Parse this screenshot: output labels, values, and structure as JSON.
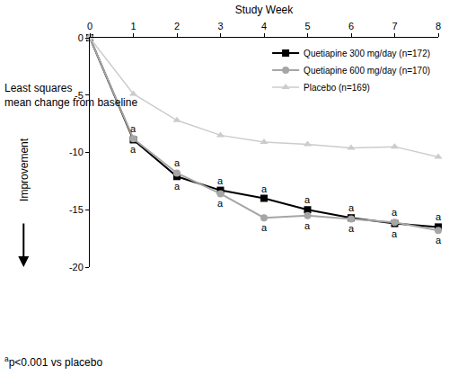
{
  "chart_data": {
    "type": "line",
    "x_label": "Study Week",
    "y_label": "Least squares mean change from baseline",
    "arrow_label": "Improvement",
    "x": [
      0,
      1,
      2,
      3,
      4,
      5,
      6,
      7,
      8
    ],
    "series": [
      {
        "name": "Quetiapine 300 mg/day (n=172)",
        "color": "#000000",
        "marker": "square",
        "values": [
          0,
          -8.9,
          -12.1,
          -13.3,
          -14.0,
          -15.0,
          -15.7,
          -16.2,
          -16.5
        ]
      },
      {
        "name": "Quetiapine 600 mg/day (n=170)",
        "color": "#a6a6a6",
        "marker": "circle",
        "values": [
          0,
          -8.8,
          -11.8,
          -13.6,
          -15.7,
          -15.5,
          -15.8,
          -16.1,
          -16.8
        ]
      },
      {
        "name": "Placebo (n=169)",
        "color": "#cccccc",
        "marker": "triangle-up",
        "values": [
          0,
          -4.9,
          -7.2,
          -8.5,
          -9.1,
          -9.3,
          -9.6,
          -9.5,
          -10.4
        ]
      }
    ],
    "xlim": [
      0,
      8
    ],
    "xticks": [
      0,
      1,
      2,
      3,
      4,
      5,
      6,
      7,
      8
    ],
    "ylim": [
      -20,
      0
    ],
    "yticks": [
      0,
      -5,
      -10,
      -15,
      -20
    ],
    "grid": false,
    "legend": "upper right",
    "annotations": [
      {
        "text": "a",
        "x": [
          1,
          2,
          3,
          4,
          5,
          6,
          7,
          8
        ]
      }
    ],
    "footnote": {
      "superscript": "a",
      "text": "p<0.001 vs placebo"
    }
  }
}
